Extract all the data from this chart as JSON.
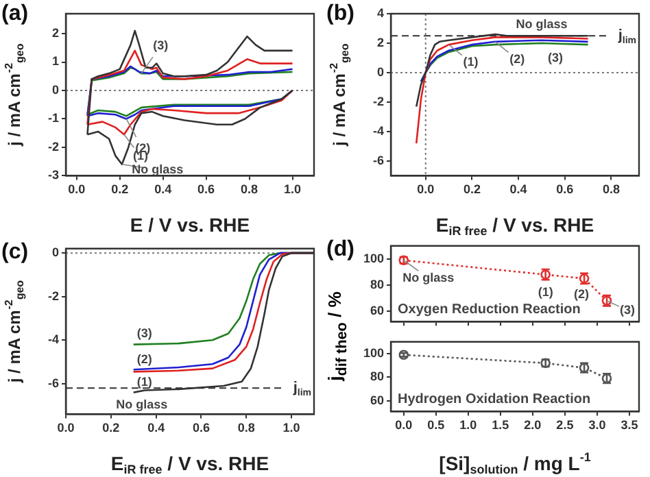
{
  "chart_data": [
    {
      "type": "line",
      "title": "(a)",
      "xlabel": "E / V vs. RHE",
      "ylabel": "j / mA cm$^{-2}$$_{geo}$",
      "xlim": [
        -0.05,
        1.1
      ],
      "ylim": [
        -3,
        2.7
      ],
      "xticks": [
        {
          "value": 0,
          "label": "0.0"
        },
        {
          "value": 0.2,
          "label": "0.2"
        },
        {
          "value": 0.4,
          "label": "0.4"
        },
        {
          "value": 0.6,
          "label": "0.6"
        },
        {
          "value": 0.8,
          "label": "0.8"
        },
        {
          "value": 1,
          "label": "1.0"
        }
      ],
      "yticks": [
        -3,
        -2,
        -1,
        0,
        1,
        2
      ],
      "series": [
        {
          "color": "#333333",
          "x": [
            0.05,
            0.07,
            0.1,
            0.15,
            0.2,
            0.25,
            0.27,
            0.29,
            0.32,
            0.35,
            0.37,
            0.4,
            0.45,
            0.5,
            0.6,
            0.65,
            0.7,
            0.75,
            0.79,
            0.83,
            0.87,
            0.95,
            1.0
          ],
          "values": [
            -1.55,
            0.4,
            0.5,
            0.6,
            0.75,
            1.6,
            2.1,
            1.6,
            0.8,
            0.8,
            0.95,
            0.6,
            0.5,
            0.5,
            0.55,
            0.7,
            1.0,
            1.5,
            1.9,
            1.6,
            1.4,
            1.4,
            1.4
          ]
        },
        {
          "color": "#333333",
          "x": [
            0.05,
            0.1,
            0.15,
            0.18,
            0.21,
            0.24,
            0.27,
            0.3,
            0.35,
            0.4,
            0.5,
            0.65,
            0.72,
            0.78,
            0.85,
            0.95,
            1.0
          ],
          "values": [
            -1.55,
            -1.45,
            -1.7,
            -2.3,
            -2.6,
            -2.0,
            -1.2,
            -0.8,
            -0.75,
            -0.9,
            -1.05,
            -1.2,
            -1.2,
            -1.0,
            -0.6,
            -0.3,
            0.0
          ]
        },
        {
          "color": "#e02020",
          "x": [
            0.05,
            0.07,
            0.15,
            0.22,
            0.27,
            0.3,
            0.35,
            0.37,
            0.4,
            0.5,
            0.6,
            0.7,
            0.79,
            0.85,
            1.0
          ],
          "values": [
            -1.2,
            0.4,
            0.55,
            0.7,
            1.4,
            0.9,
            0.75,
            0.8,
            0.45,
            0.4,
            0.5,
            0.7,
            1.1,
            0.95,
            0.95
          ]
        },
        {
          "color": "#e02020",
          "x": [
            0.05,
            0.12,
            0.18,
            0.22,
            0.25,
            0.3,
            0.35,
            0.45,
            0.6,
            0.75,
            0.85,
            0.95,
            1.0
          ],
          "values": [
            -1.2,
            -1.1,
            -1.3,
            -1.55,
            -1.2,
            -0.75,
            -0.65,
            -0.7,
            -0.8,
            -0.8,
            -0.6,
            -0.35,
            0.0
          ]
        },
        {
          "color": "#2020d0",
          "x": [
            0.05,
            0.07,
            0.15,
            0.22,
            0.25,
            0.29,
            0.34,
            0.37,
            0.4,
            0.5,
            0.7,
            0.8,
            0.9,
            1.0
          ],
          "values": [
            -0.9,
            0.4,
            0.5,
            0.65,
            0.85,
            0.65,
            0.6,
            0.7,
            0.5,
            0.5,
            0.55,
            0.65,
            0.65,
            0.75
          ]
        },
        {
          "color": "#2020d0",
          "x": [
            0.05,
            0.1,
            0.18,
            0.23,
            0.27,
            0.3,
            0.45,
            0.6,
            0.8,
            0.95,
            1.0
          ],
          "values": [
            -0.9,
            -0.8,
            -0.85,
            -1.0,
            -0.85,
            -0.7,
            -0.55,
            -0.55,
            -0.55,
            -0.3,
            0.0
          ]
        },
        {
          "color": "#208020",
          "x": [
            0.05,
            0.07,
            0.15,
            0.22,
            0.25,
            0.27,
            0.3,
            0.34,
            0.37,
            0.4,
            0.5,
            0.7,
            0.8,
            1.0
          ],
          "values": [
            -0.85,
            0.35,
            0.45,
            0.6,
            0.8,
            0.75,
            0.6,
            0.6,
            0.65,
            0.4,
            0.4,
            0.5,
            0.6,
            0.65
          ]
        },
        {
          "color": "#208020",
          "x": [
            0.05,
            0.1,
            0.18,
            0.23,
            0.3,
            0.45,
            0.6,
            0.8,
            0.95,
            1.0
          ],
          "values": [
            -0.85,
            -0.7,
            -0.75,
            -0.9,
            -0.6,
            -0.5,
            -0.5,
            -0.5,
            -0.3,
            0.0
          ]
        }
      ],
      "ref_lines": [
        {
          "axis": "y",
          "value": 0,
          "color": "#777777",
          "line_style": "dotted"
        }
      ],
      "annotations": [
        {
          "text": "(3)",
          "x": 0.3,
          "y": 0.6
        },
        {
          "text": "(2)",
          "x": 0.23,
          "y": -1.0
        },
        {
          "text": "(1)",
          "x": 0.22,
          "y": -1.55
        },
        {
          "text": "No glass",
          "x": 0.21,
          "y": -2.6
        }
      ]
    },
    {
      "type": "line",
      "title": "(b)",
      "xlabel": "E$_{iR free}$ / V vs. RHE",
      "ylabel": "j / mA cm$^{-2}$$_{geo}$",
      "xlim": [
        -0.15,
        0.92
      ],
      "ylim": [
        -7,
        4
      ],
      "xticks": [
        {
          "value": 0,
          "label": "0.0"
        },
        {
          "value": 0.2,
          "label": "0.2"
        },
        {
          "value": 0.4,
          "label": "0.4"
        },
        {
          "value": 0.6,
          "label": "0.6"
        },
        {
          "value": 0.8,
          "label": "0.8"
        }
      ],
      "yticks": [
        -6,
        -4,
        -2,
        0,
        2,
        4
      ],
      "series": [
        {
          "color": "#333333",
          "x": [
            -0.04,
            -0.02,
            0,
            0.02,
            0.04,
            0.06,
            0.1,
            0.2,
            0.3,
            0.35,
            0.5,
            0.7
          ],
          "values": [
            -2.3,
            -0.8,
            0,
            1.2,
            1.9,
            2.1,
            2.2,
            2.4,
            2.6,
            2.5,
            2.5,
            2.5
          ]
        },
        {
          "color": "#e02020",
          "x": [
            -0.04,
            -0.02,
            0,
            0.02,
            0.05,
            0.1,
            0.2,
            0.3,
            0.5,
            0.7
          ],
          "values": [
            -4.8,
            -1.8,
            0,
            0.9,
            1.5,
            1.9,
            2.2,
            2.4,
            2.4,
            2.3
          ]
        },
        {
          "color": "#2020d0",
          "x": [
            -0.02,
            0,
            0.02,
            0.05,
            0.1,
            0.2,
            0.3,
            0.5,
            0.7
          ],
          "values": [
            -0.6,
            0,
            0.6,
            1.1,
            1.5,
            1.9,
            2.1,
            2.2,
            2.1
          ]
        },
        {
          "color": "#208020",
          "x": [
            -0.02,
            0,
            0.02,
            0.05,
            0.1,
            0.2,
            0.3,
            0.5,
            0.7
          ],
          "values": [
            -0.6,
            0,
            0.5,
            1.0,
            1.4,
            1.8,
            1.9,
            2.0,
            1.9
          ]
        }
      ],
      "ref_lines": [
        {
          "axis": "y",
          "value": 0,
          "color": "#777777",
          "line_style": "dotted"
        },
        {
          "axis": "x",
          "value": 0,
          "color": "#777777",
          "line_style": "dotted"
        },
        {
          "axis": "y",
          "value": 2.5,
          "label": "j$_{lim}$",
          "color": "#333333",
          "line_style": "dashed"
        }
      ],
      "annotations": [
        {
          "text": "No glass",
          "x": 0.5,
          "y": 2.5
        },
        {
          "text": "(1)",
          "x": 0.1,
          "y": 1.9
        },
        {
          "text": "(2)",
          "x": 0.3,
          "y": 2.1
        },
        {
          "text": "(3)",
          "x": 0.5,
          "y": 2.0
        }
      ]
    },
    {
      "type": "line",
      "title": "(c)",
      "xlabel": "E$_{iR free}$ / V vs. RHE",
      "ylabel": "j / mA cm$^{-2}$$_{geo}$",
      "xlim": [
        0,
        1.1
      ],
      "ylim": [
        -7.4,
        0.2
      ],
      "xticks": [
        {
          "value": 0,
          "label": "0.0"
        },
        {
          "value": 0.2,
          "label": "0.2"
        },
        {
          "value": 0.4,
          "label": "0.4"
        },
        {
          "value": 0.6,
          "label": "0.6"
        },
        {
          "value": 0.8,
          "label": "0.8"
        },
        {
          "value": 1,
          "label": "1.0"
        }
      ],
      "yticks": [
        -6,
        -4,
        -2,
        0
      ],
      "series": [
        {
          "color": "#333333",
          "x": [
            0.3,
            0.35,
            0.5,
            0.7,
            0.78,
            0.82,
            0.85,
            0.88,
            0.9,
            0.93,
            0.96,
            1.0,
            1.1
          ],
          "values": [
            -6.4,
            -6.3,
            -6.25,
            -6.1,
            -5.9,
            -5.3,
            -4.3,
            -2.8,
            -1.7,
            -0.7,
            -0.15,
            0,
            0
          ]
        },
        {
          "color": "#e02020",
          "x": [
            0.3,
            0.5,
            0.65,
            0.75,
            0.8,
            0.83,
            0.86,
            0.89,
            0.92,
            0.96,
            1.0,
            1.1
          ],
          "values": [
            -5.45,
            -5.4,
            -5.3,
            -4.9,
            -4.3,
            -3.5,
            -2.3,
            -1.2,
            -0.4,
            -0.05,
            0,
            0
          ]
        },
        {
          "color": "#2020d0",
          "x": [
            0.3,
            0.5,
            0.65,
            0.72,
            0.77,
            0.8,
            0.83,
            0.86,
            0.9,
            0.95,
            1.1
          ],
          "values": [
            -5.35,
            -5.25,
            -5.1,
            -4.8,
            -4.2,
            -3.4,
            -2.2,
            -1.0,
            -0.3,
            0,
            0
          ]
        },
        {
          "color": "#208020",
          "x": [
            0.3,
            0.5,
            0.65,
            0.72,
            0.77,
            0.8,
            0.83,
            0.86,
            0.9,
            0.95,
            1.1
          ],
          "values": [
            -4.2,
            -4.15,
            -4.0,
            -3.7,
            -3.0,
            -2.2,
            -1.2,
            -0.5,
            -0.1,
            0,
            0
          ]
        }
      ],
      "ref_lines": [
        {
          "axis": "y",
          "value": 0,
          "color": "#777777",
          "line_style": "dotted"
        },
        {
          "axis": "y",
          "value": -6.2,
          "label": "j$_{lim}$",
          "color": "#333333",
          "line_style": "dashed"
        }
      ],
      "annotations": [
        {
          "text": "(3)",
          "x": 0.3,
          "y": -4.2
        },
        {
          "text": "(2)",
          "x": 0.3,
          "y": -5.35
        },
        {
          "text": "(1)",
          "x": 0.3,
          "y": -5.45
        },
        {
          "text": "No glass",
          "x": 0.3,
          "y": -6.4
        }
      ]
    },
    {
      "type": "line",
      "title": "(d)",
      "ylabel": "j$_{dif theo}$ / %",
      "marker": "circle",
      "line_style": "dotted",
      "tick_labels": "y",
      "xlim": [
        -0.2,
        3.65
      ],
      "ylim": [
        52,
        110
      ],
      "xticks": [
        {
          "value": 0,
          "label": null
        },
        {
          "value": 0.5,
          "label": null
        },
        {
          "value": 1,
          "label": null
        },
        {
          "value": 1.5,
          "label": null
        },
        {
          "value": 2,
          "label": null
        },
        {
          "value": 2.5,
          "label": null
        },
        {
          "value": 3,
          "label": null
        },
        {
          "value": 3.5,
          "label": null
        }
      ],
      "yticks": [
        60,
        80,
        100
      ],
      "x": [
        0,
        2.2,
        2.8,
        3.15
      ],
      "series": [
        {
          "color": "#e03030",
          "values": [
            99,
            88,
            85,
            68
          ],
          "errors": [
            2.5,
            4,
            4,
            4
          ]
        }
      ],
      "annotations": [
        {
          "text": "No glass",
          "x": 0,
          "y": 99
        },
        {
          "text": "(1)",
          "x": 2.2,
          "y": 88
        },
        {
          "text": "(2)",
          "x": 2.8,
          "y": 85
        },
        {
          "text": "(3)",
          "x": 3.15,
          "y": 68
        },
        "Oxygen Reduction Reaction"
      ]
    },
    {
      "type": "line",
      "xlabel": "[Si]$_{solution}$ / mg L$^{-1}$",
      "marker": "circle",
      "line_style": "dotted",
      "xlim": [
        -0.2,
        3.65
      ],
      "ylim": [
        51,
        110
      ],
      "xticks": [
        {
          "value": 0,
          "label": "0.0"
        },
        {
          "value": 0.5,
          "label": "0.5"
        },
        {
          "value": 1,
          "label": "1.0"
        },
        {
          "value": 1.5,
          "label": "1.5"
        },
        {
          "value": 2,
          "label": "2.0"
        },
        {
          "value": 2.5,
          "label": "2.5"
        },
        {
          "value": 3,
          "label": "3.0"
        },
        {
          "value": 3.5,
          "label": "3.5"
        }
      ],
      "yticks": [
        60,
        80,
        100
      ],
      "x": [
        0,
        2.2,
        2.8,
        3.15
      ],
      "series": [
        {
          "color": "#555555",
          "values": [
            99,
            92,
            88,
            79
          ],
          "errors": [
            1.5,
            3,
            4,
            4
          ]
        }
      ],
      "annotations": [
        "Hydrogen Oxidation Reaction"
      ]
    }
  ]
}
